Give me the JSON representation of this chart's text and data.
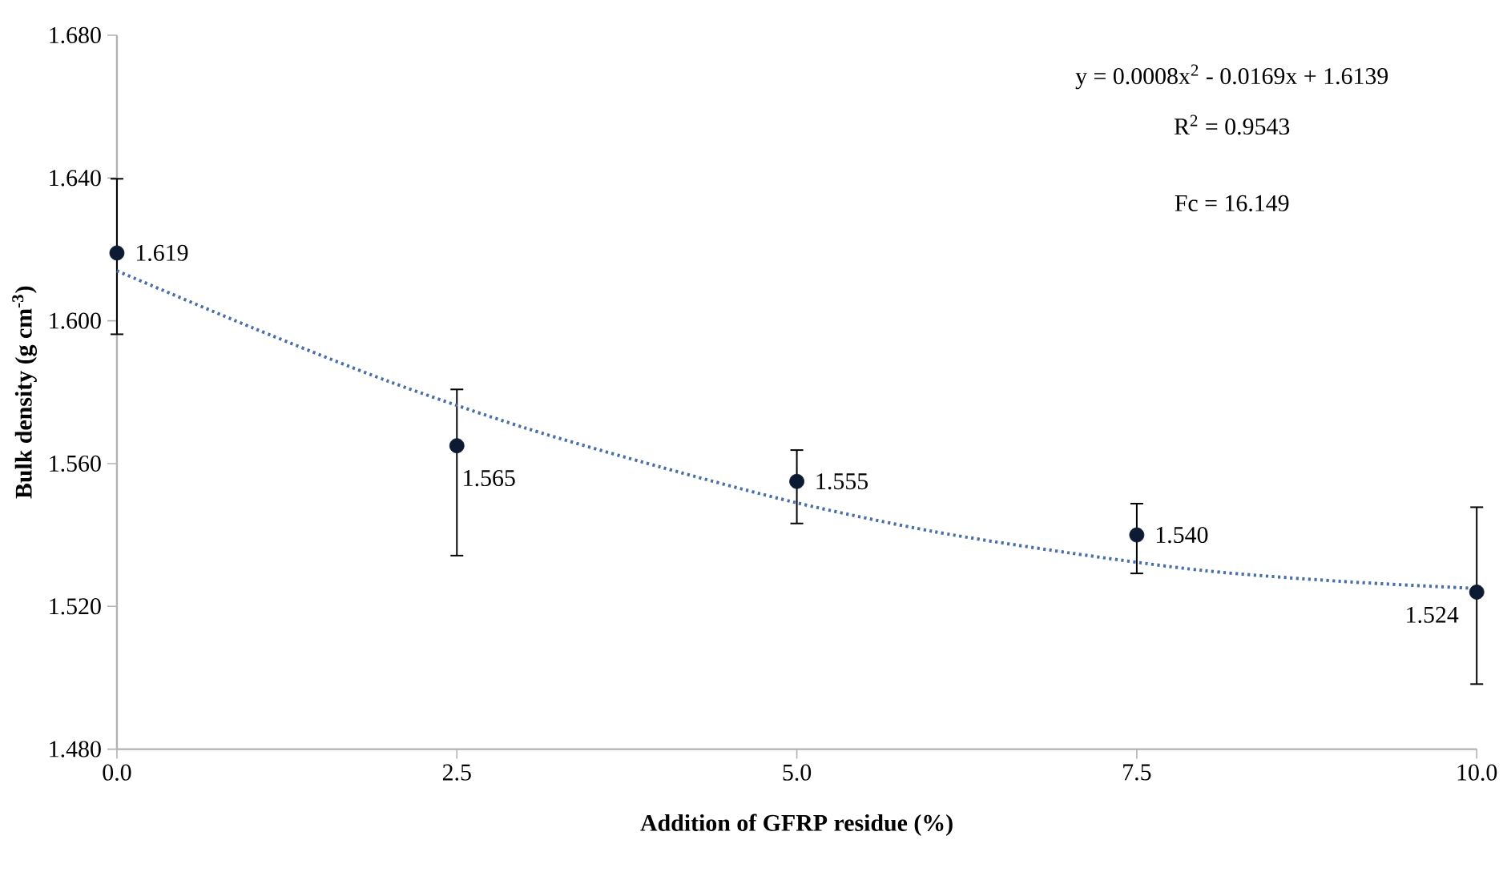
{
  "chart_data": {
    "type": "scatter",
    "xlabel": "Addition of GFRP residue (%)",
    "ylabel": "Bulk density (g cm$^{-3}$)",
    "xlim": [
      0,
      10
    ],
    "ylim": [
      1.48,
      1.68
    ],
    "xticks": [
      {
        "value": 0,
        "label": "0.0"
      },
      {
        "value": 2.5,
        "label": "2.5"
      },
      {
        "value": 5,
        "label": "5.0"
      },
      {
        "value": 7.5,
        "label": "7.5"
      },
      {
        "value": 10,
        "label": "10.0"
      }
    ],
    "yticks": [
      {
        "value": 1.48,
        "label": "1.480"
      },
      {
        "value": 1.52,
        "label": "1.520"
      },
      {
        "value": 1.56,
        "label": "1.560"
      },
      {
        "value": 1.6,
        "label": "1.600"
      },
      {
        "value": 1.64,
        "label": "1.640"
      },
      {
        "value": 1.68,
        "label": "1.680"
      }
    ],
    "grid": false,
    "annotations": [
      "y = 0.0008x$^{2}$ - 0.0169x + 1.6139",
      "R$^{2}$ = 0.9543",
      "Fc = 16.149"
    ],
    "series": [
      {
        "marker": "circle",
        "color": "#0d1a33",
        "x": [
          0,
          2.5,
          5,
          7.5,
          10
        ],
        "values": [
          1.619,
          1.565,
          1.555,
          1.54,
          1.524
        ],
        "value_labels": [
          "1.619",
          "1.565",
          "1.555",
          "1.540",
          "1.524"
        ],
        "errors": [
          [
            1.596,
            1.64
          ],
          [
            1.534,
            1.581
          ],
          [
            1.543,
            1.564
          ],
          [
            1.529,
            1.549
          ],
          [
            1.498,
            1.548
          ]
        ]
      },
      {
        "type": "line",
        "marker": "none",
        "line_style": "dotted",
        "color": "#4a6fa5",
        "x": [
          0,
          1,
          2,
          3,
          4,
          5,
          6,
          7,
          8,
          9,
          10
        ],
        "values": [
          1.614,
          1.598,
          1.583,
          1.57,
          1.559,
          1.549,
          1.541,
          1.535,
          1.53,
          1.527,
          1.525
        ]
      }
    ]
  }
}
